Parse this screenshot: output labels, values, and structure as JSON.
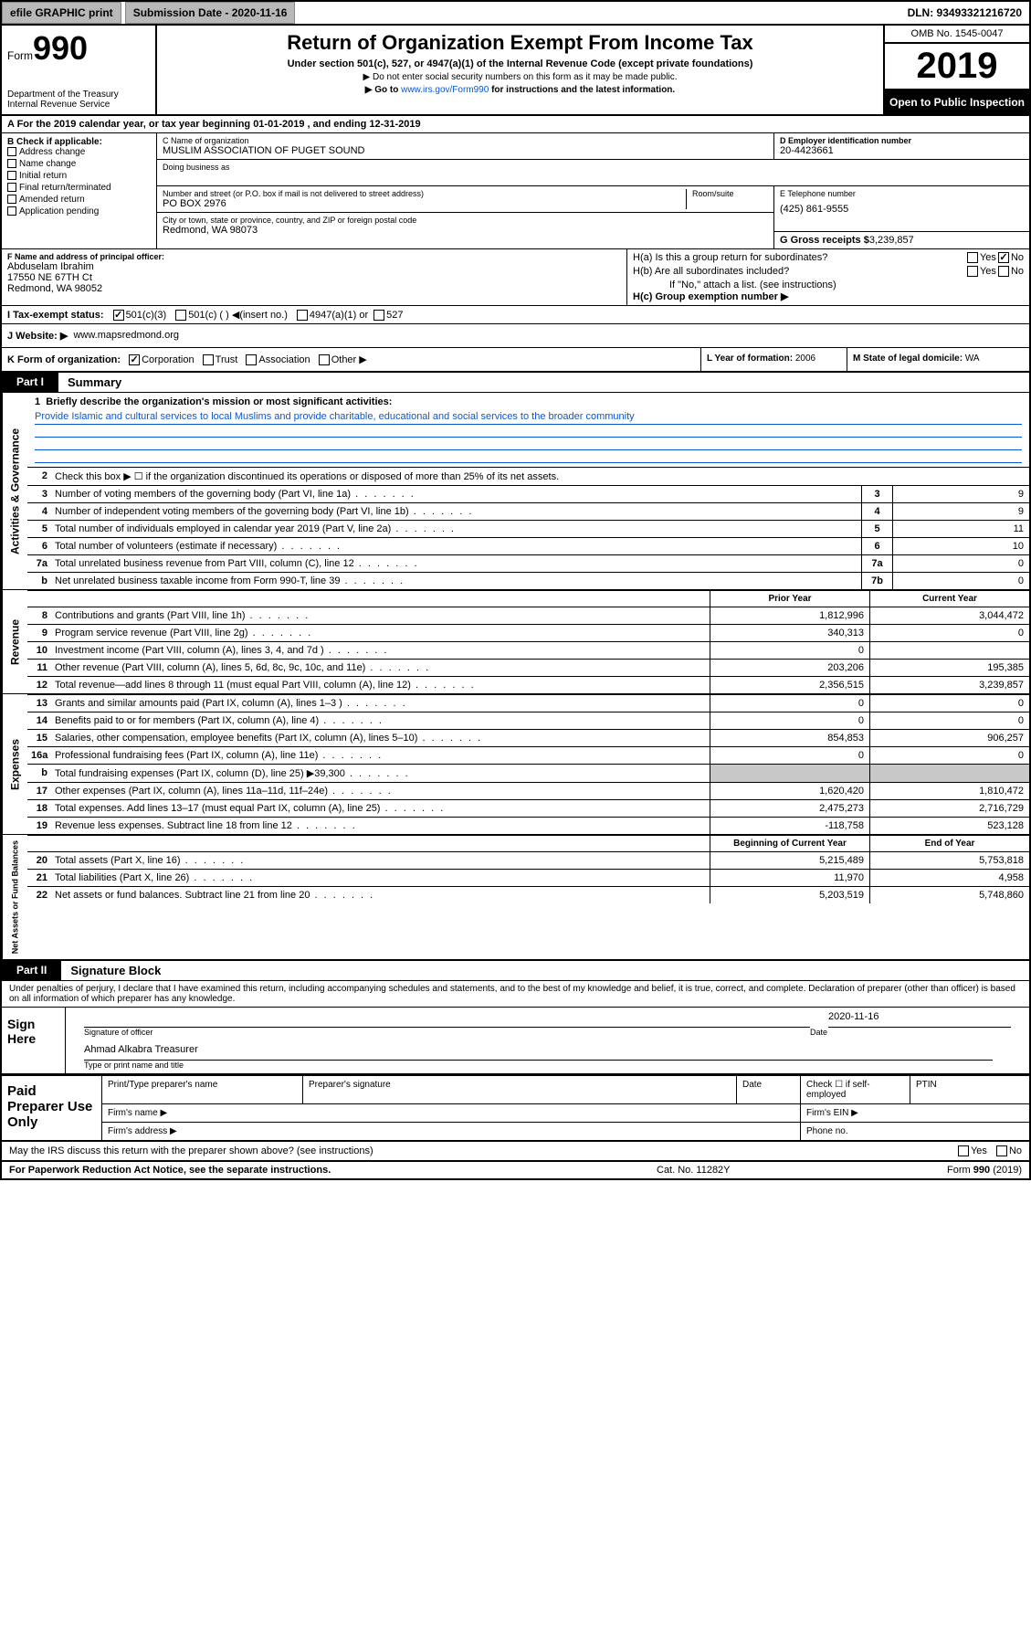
{
  "topbar": {
    "efile": "efile GRAPHIC print",
    "subdate_label": "Submission Date - 2020-11-16",
    "dln": "DLN: 93493321216720"
  },
  "header": {
    "form_prefix": "Form",
    "form_number": "990",
    "dept": "Department of the Treasury",
    "irs": "Internal Revenue Service",
    "title": "Return of Organization Exempt From Income Tax",
    "subtitle": "Under section 501(c), 527, or 4947(a)(1) of the Internal Revenue Code (except private foundations)",
    "note1": "▶ Do not enter social security numbers on this form as it may be made public.",
    "note2_pre": "▶ Go to ",
    "note2_link": "www.irs.gov/Form990",
    "note2_post": " for instructions and the latest information.",
    "omb": "OMB No. 1545-0047",
    "year": "2019",
    "open": "Open to Public Inspection"
  },
  "rowA": "A For the 2019 calendar year, or tax year beginning 01-01-2019    , and ending 12-31-2019",
  "B": {
    "label": "B Check if applicable:",
    "items": [
      "Address change",
      "Name change",
      "Initial return",
      "Final return/terminated",
      "Amended return",
      "Application pending"
    ]
  },
  "C": {
    "name_label": "C Name of organization",
    "name": "MUSLIM ASSOCIATION OF PUGET SOUND",
    "dba_label": "Doing business as",
    "addr_label": "Number and street (or P.O. box if mail is not delivered to street address)",
    "room_label": "Room/suite",
    "addr": "PO BOX 2976",
    "city_label": "City or town, state or province, country, and ZIP or foreign postal code",
    "city": "Redmond, WA  98073"
  },
  "D": {
    "label": "D Employer identification number",
    "value": "20-4423661"
  },
  "E": {
    "label": "E Telephone number",
    "value": "(425) 861-9555"
  },
  "G": {
    "label": "G Gross receipts $",
    "value": "3,239,857"
  },
  "F": {
    "label": "F  Name and address of principal officer:",
    "name": "Abduselam Ibrahim",
    "addr1": "17550 NE 67TH Ct",
    "addr2": "Redmond, WA  98052"
  },
  "H": {
    "a": "H(a)  Is this a group return for subordinates?",
    "b": "H(b)  Are all subordinates included?",
    "b_note": "If \"No,\" attach a list. (see instructions)",
    "c": "H(c)  Group exemption number ▶",
    "yes": "Yes",
    "no": "No"
  },
  "I": {
    "label": "I  Tax-exempt status:",
    "o1": "501(c)(3)",
    "o2": "501(c) (   ) ◀(insert no.)",
    "o3": "4947(a)(1) or",
    "o4": "527"
  },
  "J": {
    "label": "J  Website: ▶",
    "value": "www.mapsredmond.org"
  },
  "K": {
    "label": "K Form of organization:",
    "o1": "Corporation",
    "o2": "Trust",
    "o3": "Association",
    "o4": "Other ▶"
  },
  "L": {
    "label": "L Year of formation:",
    "value": "2006"
  },
  "M": {
    "label": "M State of legal domicile:",
    "value": "WA"
  },
  "parts": {
    "p1": "Part I",
    "p1t": "Summary",
    "p2": "Part II",
    "p2t": "Signature Block"
  },
  "q1": {
    "n": "1",
    "label": "Briefly describe the organization's mission or most significant activities:",
    "mission": "Provide Islamic and cultural services to local Muslims and provide charitable, educational and social services to the broader community"
  },
  "gov": {
    "q2": {
      "n": "2",
      "t": "Check this box ▶ ☐  if the organization discontinued its operations or disposed of more than 25% of its net assets."
    },
    "rows": [
      {
        "n": "3",
        "t": "Number of voting members of the governing body (Part VI, line 1a)",
        "box": "3",
        "v": "9"
      },
      {
        "n": "4",
        "t": "Number of independent voting members of the governing body (Part VI, line 1b)",
        "box": "4",
        "v": "9"
      },
      {
        "n": "5",
        "t": "Total number of individuals employed in calendar year 2019 (Part V, line 2a)",
        "box": "5",
        "v": "11"
      },
      {
        "n": "6",
        "t": "Total number of volunteers (estimate if necessary)",
        "box": "6",
        "v": "10"
      },
      {
        "n": "7a",
        "t": "Total unrelated business revenue from Part VIII, column (C), line 12",
        "box": "7a",
        "v": "0"
      },
      {
        "n": "b",
        "t": "Net unrelated business taxable income from Form 990-T, line 39",
        "box": "7b",
        "v": "0"
      }
    ]
  },
  "col_hdrs": {
    "prior": "Prior Year",
    "current": "Current Year",
    "boy": "Beginning of Current Year",
    "eoy": "End of Year"
  },
  "revenue": [
    {
      "n": "8",
      "t": "Contributions and grants (Part VIII, line 1h)",
      "v1": "1,812,996",
      "v2": "3,044,472"
    },
    {
      "n": "9",
      "t": "Program service revenue (Part VIII, line 2g)",
      "v1": "340,313",
      "v2": "0"
    },
    {
      "n": "10",
      "t": "Investment income (Part VIII, column (A), lines 3, 4, and 7d )",
      "v1": "0",
      "v2": ""
    },
    {
      "n": "11",
      "t": "Other revenue (Part VIII, column (A), lines 5, 6d, 8c, 9c, 10c, and 11e)",
      "v1": "203,206",
      "v2": "195,385"
    },
    {
      "n": "12",
      "t": "Total revenue—add lines 8 through 11 (must equal Part VIII, column (A), line 12)",
      "v1": "2,356,515",
      "v2": "3,239,857"
    }
  ],
  "expenses": [
    {
      "n": "13",
      "t": "Grants and similar amounts paid (Part IX, column (A), lines 1–3 )",
      "v1": "0",
      "v2": "0"
    },
    {
      "n": "14",
      "t": "Benefits paid to or for members (Part IX, column (A), line 4)",
      "v1": "0",
      "v2": "0"
    },
    {
      "n": "15",
      "t": "Salaries, other compensation, employee benefits (Part IX, column (A), lines 5–10)",
      "v1": "854,853",
      "v2": "906,257"
    },
    {
      "n": "16a",
      "t": "Professional fundraising fees (Part IX, column (A), line 11e)",
      "v1": "0",
      "v2": "0"
    },
    {
      "n": "b",
      "t": "Total fundraising expenses (Part IX, column (D), line 25) ▶39,300",
      "v1": "gray",
      "v2": "gray"
    },
    {
      "n": "17",
      "t": "Other expenses (Part IX, column (A), lines 11a–11d, 11f–24e)",
      "v1": "1,620,420",
      "v2": "1,810,472"
    },
    {
      "n": "18",
      "t": "Total expenses. Add lines 13–17 (must equal Part IX, column (A), line 25)",
      "v1": "2,475,273",
      "v2": "2,716,729"
    },
    {
      "n": "19",
      "t": "Revenue less expenses. Subtract line 18 from line 12",
      "v1": "-118,758",
      "v2": "523,128"
    }
  ],
  "netassets": [
    {
      "n": "20",
      "t": "Total assets (Part X, line 16)",
      "v1": "5,215,489",
      "v2": "5,753,818"
    },
    {
      "n": "21",
      "t": "Total liabilities (Part X, line 26)",
      "v1": "11,970",
      "v2": "4,958"
    },
    {
      "n": "22",
      "t": "Net assets or fund balances. Subtract line 21 from line 20",
      "v1": "5,203,519",
      "v2": "5,748,860"
    }
  ],
  "vtabs": {
    "gov": "Activities & Governance",
    "rev": "Revenue",
    "exp": "Expenses",
    "na": "Net Assets or Fund Balances"
  },
  "penalty": "Under penalties of perjury, I declare that I have examined this return, including accompanying schedules and statements, and to the best of my knowledge and belief, it is true, correct, and complete. Declaration of preparer (other than officer) is based on all information of which preparer has any knowledge.",
  "sign": {
    "here": "Sign Here",
    "sig_officer": "Signature of officer",
    "date": "Date",
    "date_val": "2020-11-16",
    "name": "Ahmad Alkabra  Treasurer",
    "name_label": "Type or print name and title"
  },
  "paid": {
    "title": "Paid Preparer Use Only",
    "h1": "Print/Type preparer's name",
    "h2": "Preparer's signature",
    "h3": "Date",
    "h4": "Check ☐ if self-employed",
    "h5": "PTIN",
    "firm_name": "Firm's name    ▶",
    "firm_ein": "Firm's EIN ▶",
    "firm_addr": "Firm's address ▶",
    "phone": "Phone no."
  },
  "discuss": {
    "t": "May the IRS discuss this return with the preparer shown above? (see instructions)",
    "yes": "Yes",
    "no": "No"
  },
  "footer": {
    "pra": "For Paperwork Reduction Act Notice, see the separate instructions.",
    "cat": "Cat. No. 11282Y",
    "form": "Form 990 (2019)"
  }
}
